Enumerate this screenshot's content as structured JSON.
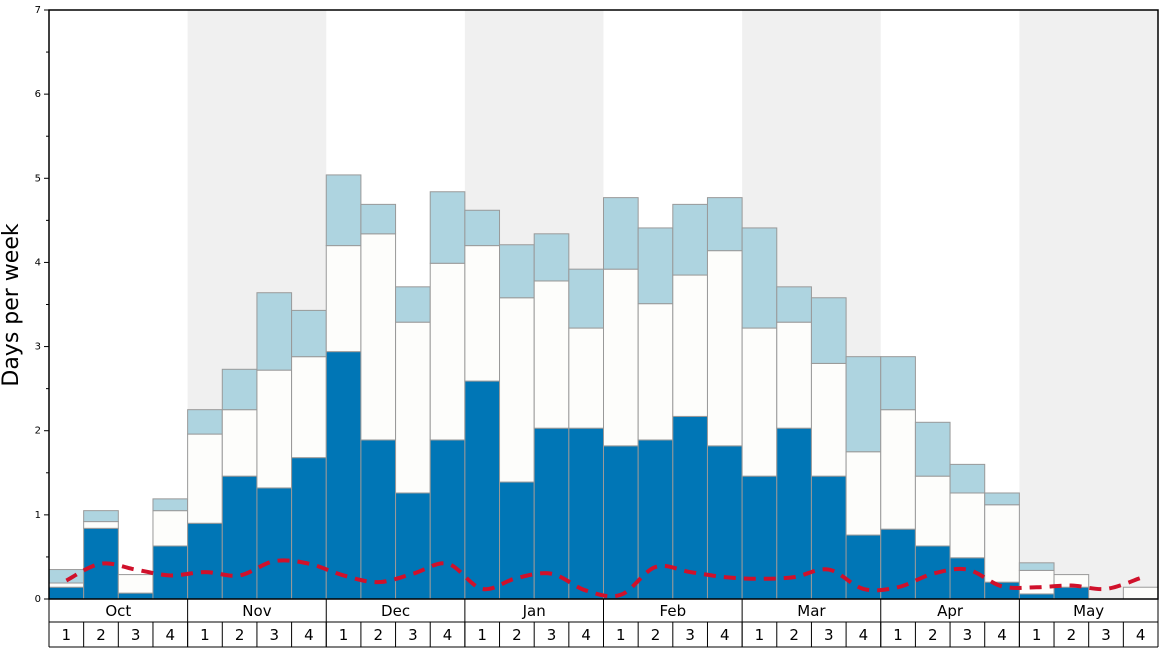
{
  "chart_data": {
    "type": "stacked-bar",
    "y_label": "Days per week",
    "months": [
      "Oct",
      "Nov",
      "Dec",
      "Jan",
      "Feb",
      "Mar",
      "Apr",
      "May"
    ],
    "categories": [
      "1",
      "2",
      "3",
      "4",
      "1",
      "2",
      "3",
      "4",
      "1",
      "2",
      "3",
      "4",
      "1",
      "2",
      "3",
      "4",
      "1",
      "2",
      "3",
      "4",
      "1",
      "2",
      "3",
      "4",
      "1",
      "2",
      "3",
      "4",
      "1",
      "2",
      "3",
      "4"
    ],
    "series": [
      {
        "color": "#0076b6",
        "values": [
          0.14,
          0.84,
          0.07,
          0.63,
          0.9,
          1.46,
          1.32,
          1.68,
          2.94,
          1.89,
          1.26,
          1.89,
          2.59,
          1.39,
          2.03,
          2.03,
          1.82,
          1.89,
          2.17,
          1.82,
          1.46,
          2.03,
          1.46,
          0.76,
          0.83,
          0.63,
          0.49,
          0.2,
          0.06,
          0.14,
          0,
          0
        ]
      },
      {
        "color": "#fdfdfb",
        "values": [
          0.05,
          0.08,
          0.22,
          0.42,
          1.06,
          0.79,
          1.4,
          1.2,
          1.26,
          2.45,
          2.03,
          2.1,
          1.61,
          2.19,
          1.75,
          1.19,
          2.1,
          1.62,
          1.68,
          2.32,
          1.76,
          1.26,
          1.34,
          0.99,
          1.42,
          0.83,
          0.77,
          0.92,
          0.28,
          0.15,
          0,
          0.14
        ]
      },
      {
        "color": "#aed4e0",
        "values": [
          0.16,
          0.13,
          0,
          0.14,
          0.29,
          0.48,
          0.92,
          0.55,
          0.84,
          0.35,
          0.42,
          0.85,
          0.42,
          0.63,
          0.56,
          0.7,
          0.85,
          0.9,
          0.84,
          0.63,
          1.19,
          0.42,
          0.78,
          1.13,
          0.63,
          0.64,
          0.34,
          0.14,
          0.09,
          0,
          0,
          0
        ]
      }
    ],
    "line": {
      "color": "#d0112b",
      "dashed": true,
      "values": [
        0.22,
        0.42,
        0.35,
        0.28,
        0.32,
        0.28,
        0.45,
        0.42,
        0.28,
        0.2,
        0.3,
        0.42,
        0.12,
        0.25,
        0.3,
        0.1,
        0.05,
        0.38,
        0.32,
        0.26,
        0.24,
        0.26,
        0.35,
        0.12,
        0.14,
        0.3,
        0.35,
        0.15,
        0.14,
        0.16,
        0.12,
        0.25
      ]
    },
    "ylim": [
      0,
      7
    ],
    "yticks": [
      0,
      1,
      2,
      3,
      4,
      5,
      6,
      7
    ]
  }
}
